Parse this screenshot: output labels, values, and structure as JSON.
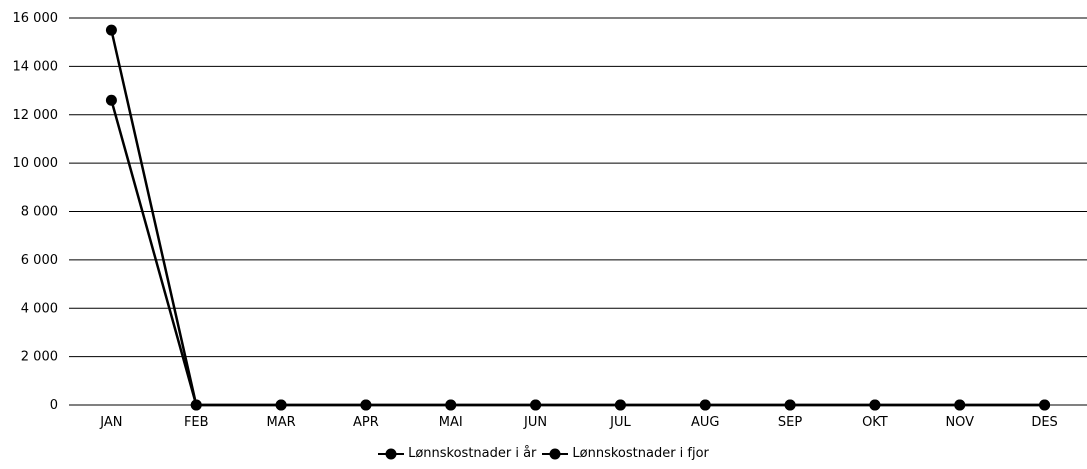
{
  "chart_data": {
    "type": "line",
    "categories": [
      "JAN",
      "FEB",
      "MAR",
      "APR",
      "MAI",
      "JUN",
      "JUL",
      "AUG",
      "SEP",
      "OKT",
      "NOV",
      "DES"
    ],
    "series": [
      {
        "name": "Lønnskostnader i år",
        "values": [
          12600,
          0,
          0,
          0,
          0,
          0,
          0,
          0,
          0,
          0,
          0,
          0
        ]
      },
      {
        "name": "Lønnskostnader i fjor",
        "values": [
          15500,
          0,
          0,
          0,
          0,
          0,
          0,
          0,
          0,
          0,
          0,
          0
        ]
      }
    ],
    "yticks": [
      "0",
      "2 000",
      "4 000",
      "6 000",
      "8 000",
      "10 000",
      "12 000",
      "14 000",
      "16 000"
    ],
    "ylim": [
      0,
      16000
    ],
    "grid": true,
    "legend_position": "bottom",
    "colors": {
      "line": "#000000",
      "grid": "#000000"
    }
  }
}
